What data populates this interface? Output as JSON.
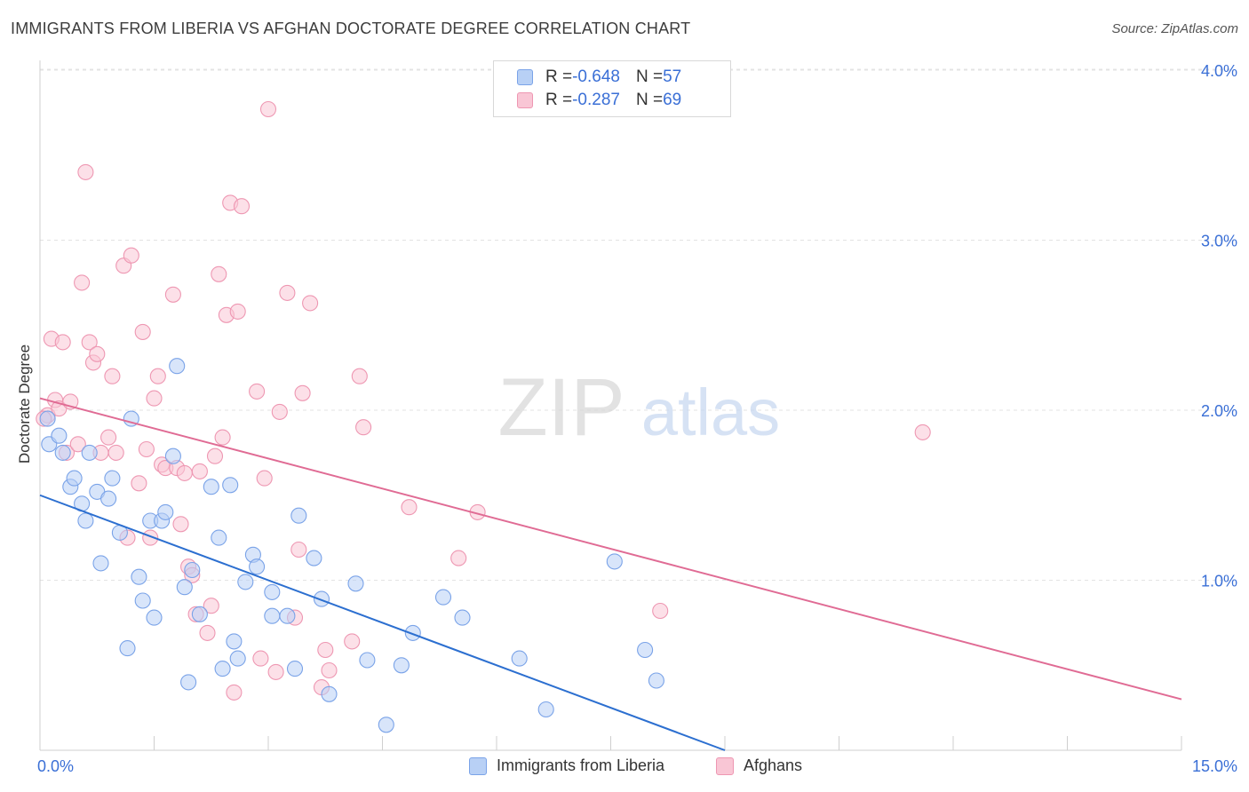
{
  "title": "IMMIGRANTS FROM LIBERIA VS AFGHAN DOCTORATE DEGREE CORRELATION CHART",
  "source": "Source: ZipAtlas.com",
  "watermark": {
    "zip": "ZIP",
    "atlas": "atlas"
  },
  "colors": {
    "liberia_fill": "#b8d0f5",
    "liberia_stroke": "#7aa3e8",
    "liberia_line": "#2c6fd0",
    "afghan_fill": "#f9c6d5",
    "afghan_stroke": "#ee97b2",
    "afghan_line": "#e06b94",
    "tick_label": "#3a6fd6",
    "grid": "#e3e3e3"
  },
  "legend": [
    {
      "r_label": "R = ",
      "r_value": "-0.648",
      "n_label": "N = ",
      "n_value": "57"
    },
    {
      "r_label": "R = ",
      "r_value": "-0.287",
      "n_label": "N = ",
      "n_value": "69"
    }
  ],
  "chart_data": {
    "type": "scatter",
    "title": "IMMIGRANTS FROM LIBERIA VS AFGHAN DOCTORATE DEGREE CORRELATION CHART",
    "xlabel": "",
    "ylabel": "Doctorate Degree",
    "xlim": [
      0,
      15
    ],
    "ylim": [
      0,
      4.15
    ],
    "x_tick_labels": [
      "0.0%",
      "15.0%"
    ],
    "y_ticks": [
      1,
      2,
      3,
      4
    ],
    "y_tick_labels": [
      "1.0%",
      "2.0%",
      "3.0%",
      "4.0%"
    ],
    "grid": true,
    "legend_position": "top-center",
    "series": [
      {
        "name": "Immigrants from Liberia",
        "color": "#7aa3e8",
        "trend": {
          "x": [
            0.0,
            9.0
          ],
          "y": [
            1.5,
            0.0
          ]
        },
        "points": [
          [
            0.1,
            1.95
          ],
          [
            0.12,
            1.8
          ],
          [
            0.25,
            1.85
          ],
          [
            0.3,
            1.75
          ],
          [
            0.4,
            1.55
          ],
          [
            0.45,
            1.6
          ],
          [
            0.55,
            1.45
          ],
          [
            0.6,
            1.35
          ],
          [
            0.65,
            1.75
          ],
          [
            0.75,
            1.52
          ],
          [
            0.8,
            1.1
          ],
          [
            0.9,
            1.48
          ],
          [
            0.95,
            1.6
          ],
          [
            1.05,
            1.28
          ],
          [
            1.15,
            0.6
          ],
          [
            1.2,
            1.95
          ],
          [
            1.3,
            1.02
          ],
          [
            1.35,
            0.88
          ],
          [
            1.45,
            1.35
          ],
          [
            1.5,
            0.78
          ],
          [
            1.6,
            1.35
          ],
          [
            1.65,
            1.4
          ],
          [
            1.75,
            1.73
          ],
          [
            1.8,
            2.26
          ],
          [
            1.9,
            0.96
          ],
          [
            1.95,
            0.4
          ],
          [
            2.0,
            1.06
          ],
          [
            2.1,
            0.8
          ],
          [
            2.25,
            1.55
          ],
          [
            2.35,
            1.25
          ],
          [
            2.4,
            0.48
          ],
          [
            2.5,
            1.56
          ],
          [
            2.55,
            0.64
          ],
          [
            2.6,
            0.54
          ],
          [
            2.7,
            0.99
          ],
          [
            2.8,
            1.15
          ],
          [
            2.85,
            1.08
          ],
          [
            3.05,
            0.93
          ],
          [
            3.05,
            0.79
          ],
          [
            3.25,
            0.79
          ],
          [
            3.35,
            0.48
          ],
          [
            3.4,
            1.38
          ],
          [
            3.6,
            1.13
          ],
          [
            3.7,
            0.89
          ],
          [
            3.8,
            0.33
          ],
          [
            4.15,
            0.98
          ],
          [
            4.3,
            0.53
          ],
          [
            4.55,
            0.15
          ],
          [
            4.75,
            0.5
          ],
          [
            4.9,
            0.69
          ],
          [
            5.3,
            0.9
          ],
          [
            5.55,
            0.78
          ],
          [
            6.3,
            0.54
          ],
          [
            6.65,
            0.24
          ],
          [
            7.55,
            1.11
          ],
          [
            7.95,
            0.59
          ],
          [
            8.1,
            0.41
          ]
        ]
      },
      {
        "name": "Afghans",
        "color": "#ee97b2",
        "trend": {
          "x": [
            0.0,
            15.0
          ],
          "y": [
            2.07,
            0.3
          ]
        },
        "points": [
          [
            0.1,
            1.97
          ],
          [
            0.15,
            2.42
          ],
          [
            0.2,
            2.06
          ],
          [
            0.25,
            2.01
          ],
          [
            0.3,
            2.4
          ],
          [
            0.35,
            1.75
          ],
          [
            0.4,
            2.05
          ],
          [
            0.5,
            1.8
          ],
          [
            0.55,
            2.75
          ],
          [
            0.6,
            3.4
          ],
          [
            0.65,
            2.4
          ],
          [
            0.7,
            2.28
          ],
          [
            0.75,
            2.33
          ],
          [
            0.8,
            1.75
          ],
          [
            0.9,
            1.84
          ],
          [
            0.95,
            2.2
          ],
          [
            1.0,
            1.75
          ],
          [
            1.1,
            2.85
          ],
          [
            1.15,
            1.25
          ],
          [
            1.2,
            2.91
          ],
          [
            1.3,
            1.57
          ],
          [
            1.35,
            2.46
          ],
          [
            1.4,
            1.77
          ],
          [
            1.45,
            1.25
          ],
          [
            1.5,
            2.07
          ],
          [
            1.55,
            2.2
          ],
          [
            1.6,
            1.68
          ],
          [
            1.65,
            1.66
          ],
          [
            1.75,
            2.68
          ],
          [
            1.8,
            1.66
          ],
          [
            1.85,
            1.33
          ],
          [
            1.9,
            1.63
          ],
          [
            1.95,
            1.08
          ],
          [
            2.0,
            1.03
          ],
          [
            2.05,
            0.8
          ],
          [
            2.1,
            1.64
          ],
          [
            2.2,
            0.69
          ],
          [
            2.25,
            0.85
          ],
          [
            2.3,
            1.73
          ],
          [
            2.35,
            2.8
          ],
          [
            2.4,
            1.84
          ],
          [
            2.45,
            2.56
          ],
          [
            2.5,
            3.22
          ],
          [
            2.55,
            0.34
          ],
          [
            2.6,
            2.58
          ],
          [
            2.65,
            3.2
          ],
          [
            2.85,
            2.11
          ],
          [
            2.9,
            0.54
          ],
          [
            2.95,
            1.6
          ],
          [
            3.0,
            3.77
          ],
          [
            3.1,
            0.46
          ],
          [
            3.15,
            1.99
          ],
          [
            3.25,
            2.69
          ],
          [
            3.35,
            0.78
          ],
          [
            3.4,
            1.18
          ],
          [
            3.45,
            2.1
          ],
          [
            3.55,
            2.63
          ],
          [
            3.7,
            0.37
          ],
          [
            3.75,
            0.59
          ],
          [
            3.8,
            0.47
          ],
          [
            4.1,
            0.64
          ],
          [
            4.2,
            2.2
          ],
          [
            4.25,
            1.9
          ],
          [
            4.85,
            1.43
          ],
          [
            5.5,
            1.13
          ],
          [
            5.75,
            1.4
          ],
          [
            8.15,
            0.82
          ],
          [
            11.6,
            1.87
          ],
          [
            0.05,
            1.95
          ]
        ]
      }
    ]
  },
  "bottom_legend": {
    "liberia_label": "Immigrants from Liberia",
    "afghan_label": "Afghans"
  }
}
